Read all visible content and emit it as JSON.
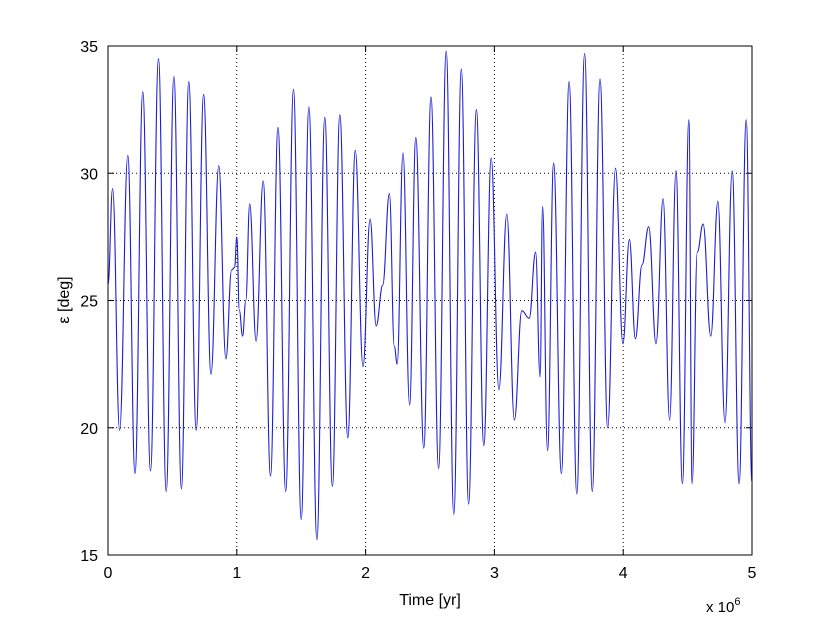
{
  "chart_data": {
    "type": "line",
    "title": "",
    "xlabel": "Time [yr]",
    "ylabel": "ε [deg]",
    "x_multiplier_base": "x 10",
    "x_multiplier_exp": "6",
    "xlim": [
      0,
      5
    ],
    "ylim": [
      15,
      35
    ],
    "xticks": [
      0,
      1,
      2,
      3,
      4,
      5
    ],
    "xtick_labels": [
      "0",
      "1",
      "2",
      "3",
      "4",
      "5"
    ],
    "yticks": [
      15,
      20,
      25,
      30,
      35
    ],
    "ytick_labels": [
      "15",
      "20",
      "25",
      "30",
      "35"
    ],
    "grid": true,
    "legend": "none",
    "line_color": "#1c1cd6",
    "series": [
      {
        "x": [
          0.0,
          0.036,
          0.09,
          0.154,
          0.21,
          0.27,
          0.33,
          0.392,
          0.452,
          0.512,
          0.57,
          0.627,
          0.685,
          0.742,
          0.8,
          0.86,
          0.915,
          0.96,
          0.983,
          1.0,
          1.02,
          1.045,
          1.07,
          1.1,
          1.15,
          1.205,
          1.262,
          1.32,
          1.38,
          1.44,
          1.5,
          1.56,
          1.622,
          1.683,
          1.742,
          1.8,
          1.862,
          1.92,
          1.98,
          2.035,
          2.082,
          2.133,
          2.185,
          2.223,
          2.245,
          2.29,
          2.342,
          2.39,
          2.452,
          2.508,
          2.567,
          2.626,
          2.685,
          2.743,
          2.8,
          2.86,
          2.918,
          2.975,
          3.035,
          3.096,
          3.155,
          3.213,
          3.27,
          3.32,
          3.355,
          3.374,
          3.412,
          3.46,
          3.52,
          3.58,
          3.64,
          3.7,
          3.76,
          3.82,
          3.88,
          3.94,
          3.998,
          4.048,
          4.095,
          4.146,
          4.198,
          4.255,
          4.31,
          4.36,
          4.41,
          4.46,
          4.51,
          4.535,
          4.575,
          4.62,
          4.68,
          4.735,
          4.79,
          4.846,
          4.9,
          4.955,
          5.0
        ],
        "y": [
          25.6,
          29.4,
          19.9,
          30.7,
          18.2,
          33.2,
          18.3,
          34.5,
          17.5,
          33.8,
          17.6,
          33.6,
          19.9,
          33.1,
          22.1,
          30.3,
          22.7,
          26.2,
          26.3,
          27.5,
          24.6,
          23.6,
          25.0,
          28.8,
          23.4,
          29.7,
          18.1,
          31.8,
          17.5,
          33.3,
          16.4,
          32.6,
          15.6,
          32.2,
          17.7,
          32.3,
          19.6,
          30.9,
          22.4,
          28.2,
          24.0,
          25.6,
          29.2,
          23.2,
          22.5,
          30.8,
          20.9,
          31.4,
          19.2,
          33.0,
          18.4,
          34.8,
          16.6,
          34.1,
          17.0,
          32.5,
          19.3,
          30.6,
          21.5,
          28.4,
          20.3,
          24.6,
          24.3,
          26.9,
          22.0,
          28.7,
          19.1,
          30.4,
          18.2,
          33.6,
          17.4,
          34.7,
          17.5,
          33.7,
          20.0,
          30.2,
          23.3,
          27.4,
          23.5,
          26.4,
          27.9,
          23.3,
          29.0,
          20.3,
          30.1,
          17.8,
          32.1,
          17.8,
          26.9,
          28.0,
          23.6,
          28.9,
          20.2,
          30.1,
          17.8,
          32.1,
          17.8
        ]
      }
    ]
  }
}
